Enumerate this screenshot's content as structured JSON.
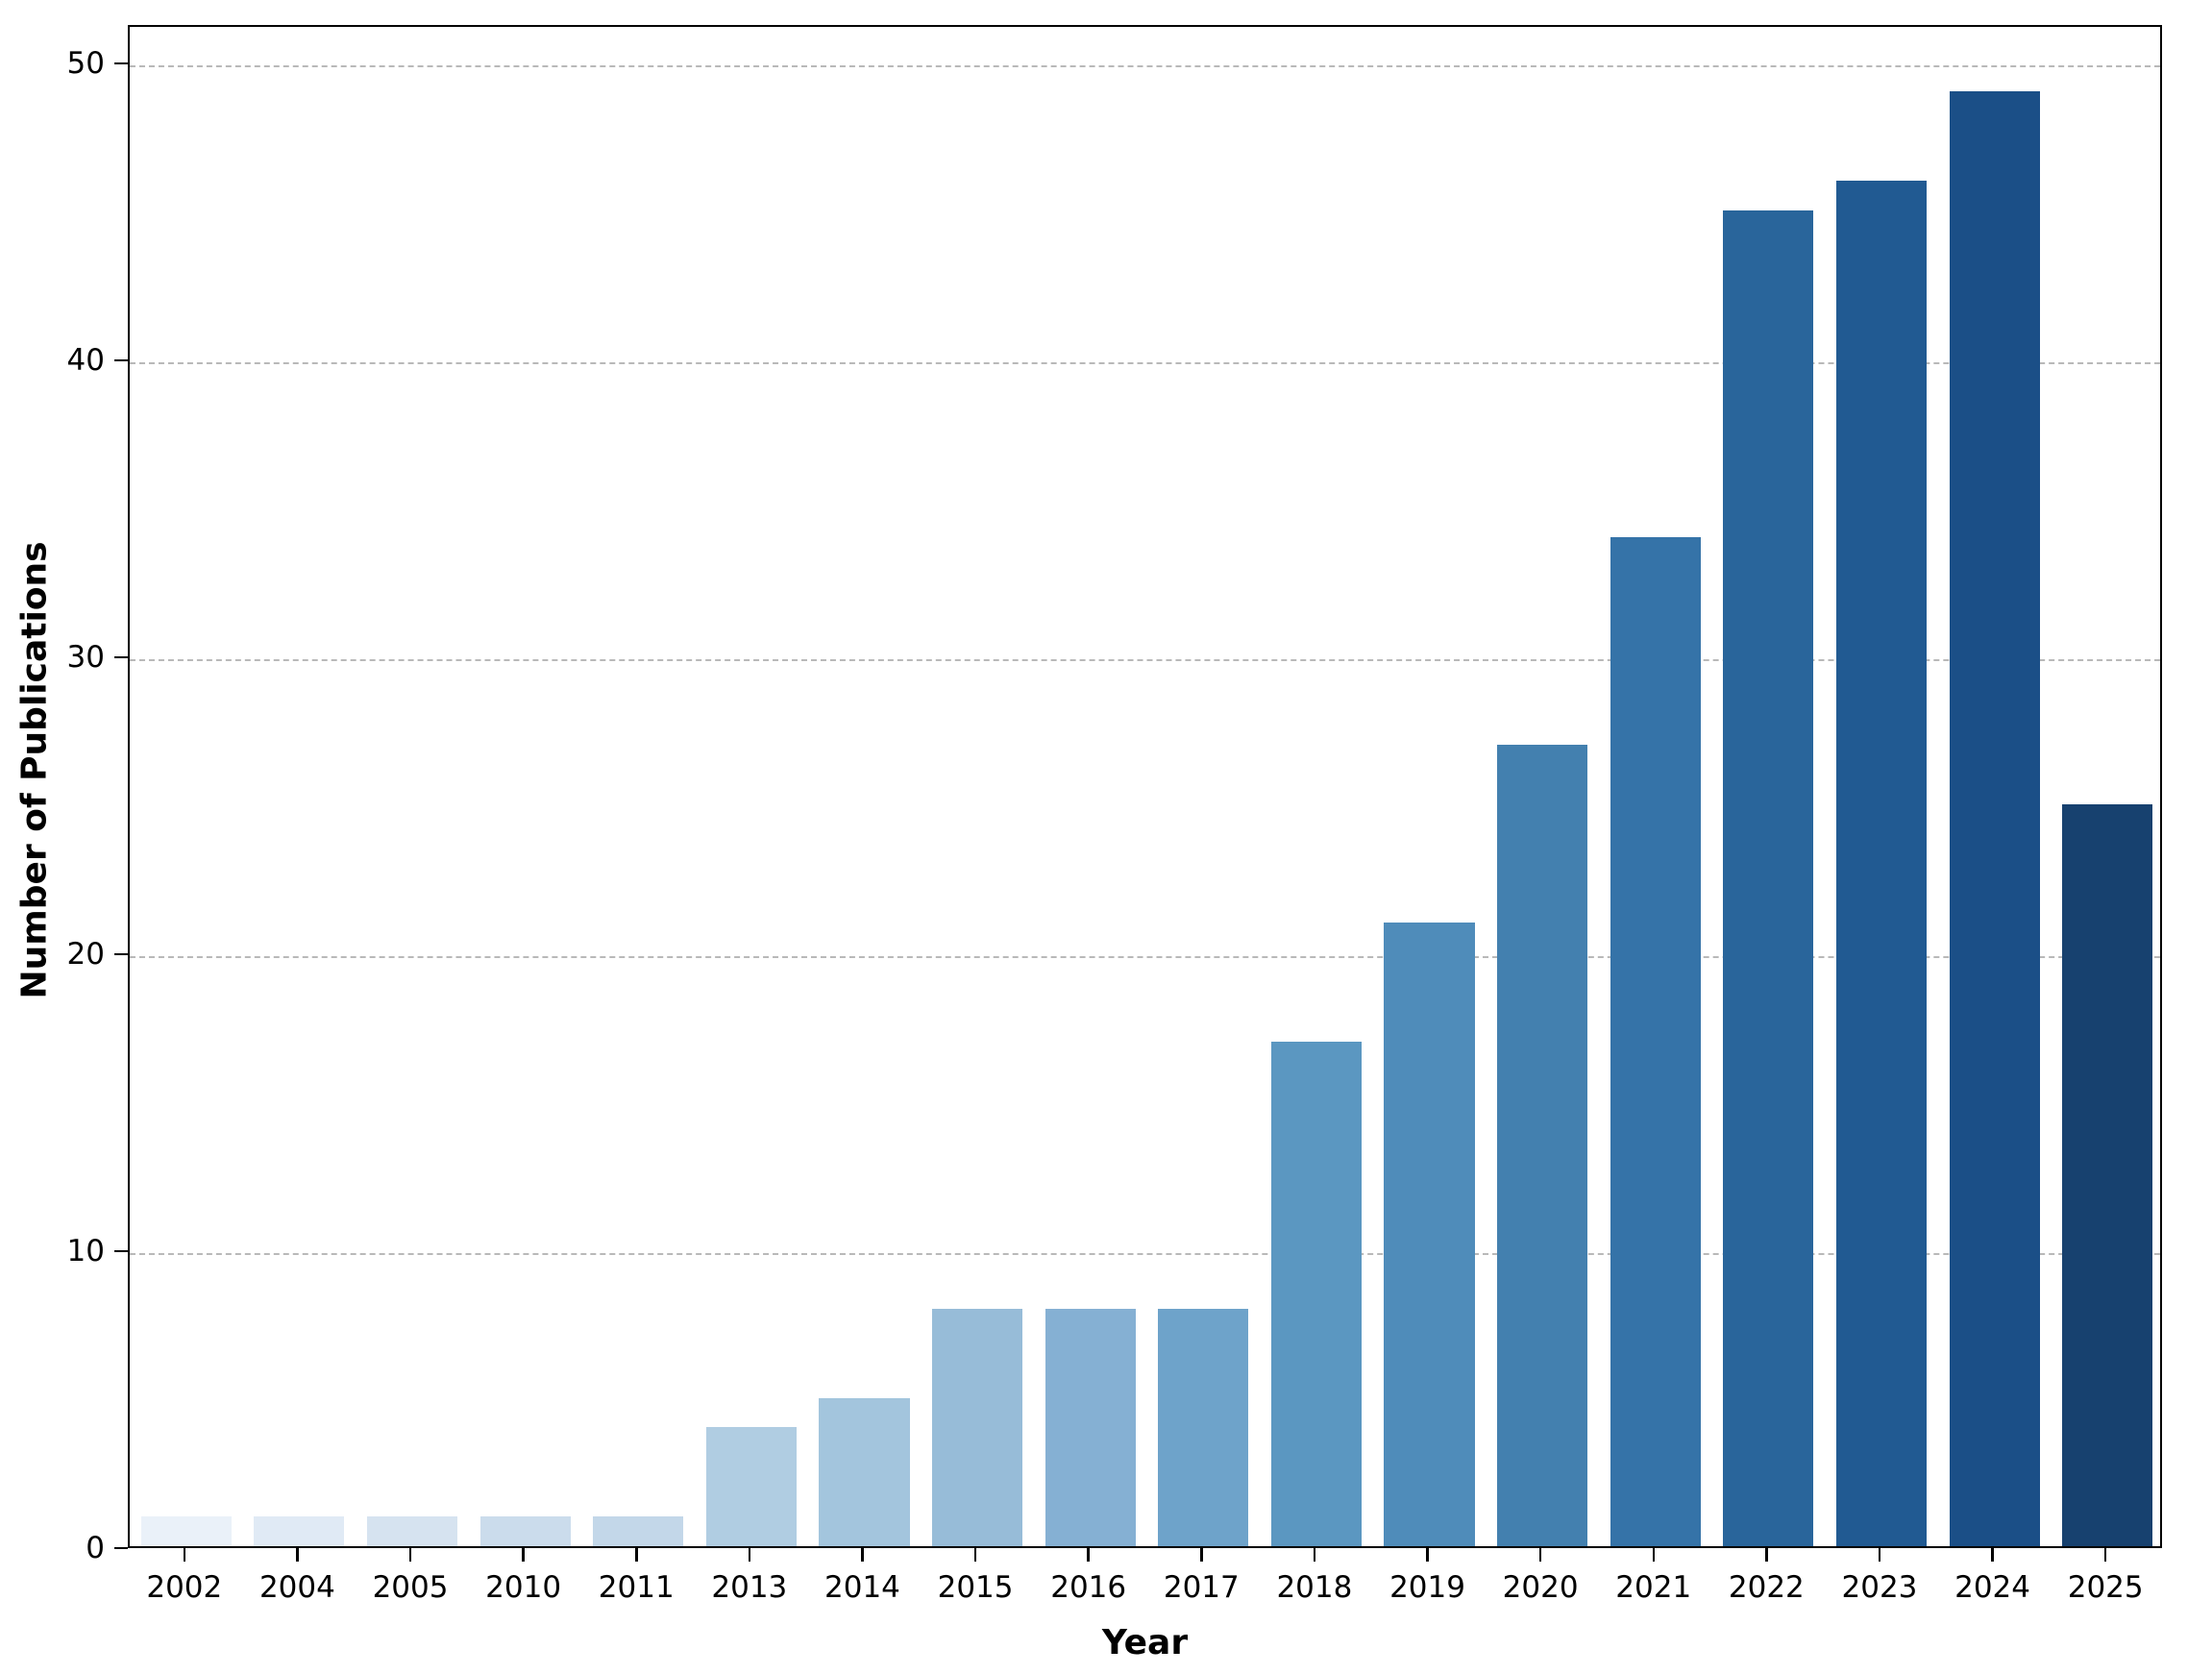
{
  "figure": {
    "background": "#ffffff",
    "spine_color": "#000000",
    "grid_color": "#b9b9b9"
  },
  "chart_data": {
    "type": "bar",
    "title": "",
    "xlabel": "Year",
    "ylabel": "Number of Publications",
    "categories": [
      "2002",
      "2004",
      "2005",
      "2010",
      "2011",
      "2013",
      "2014",
      "2015",
      "2016",
      "2017",
      "2018",
      "2019",
      "2020",
      "2021",
      "2022",
      "2023",
      "2024",
      "2025"
    ],
    "values": [
      1,
      1,
      1,
      1,
      1,
      4,
      5,
      8,
      8,
      8,
      17,
      21,
      27,
      34,
      45,
      46,
      49,
      25
    ],
    "bar_colors": [
      "#eaf1f9",
      "#e0eaf5",
      "#d6e3f0",
      "#cbdcec",
      "#c3d7e9",
      "#b0cde2",
      "#a3c5dd",
      "#97bcd8",
      "#85b0d3",
      "#6ea3ca",
      "#5b97c1",
      "#4f8cba",
      "#4380af",
      "#3573a8",
      "#29659b",
      "#215a92",
      "#1b4f87",
      "#17416f"
    ],
    "ylim": [
      0,
      51.3
    ],
    "yticks": [
      0,
      10,
      20,
      30,
      40,
      50
    ],
    "grid": "horizontal-dashed",
    "gridline_ticks": [
      10,
      20,
      30,
      40,
      50
    ],
    "legend": "none",
    "bar_relative_width": 0.8
  }
}
